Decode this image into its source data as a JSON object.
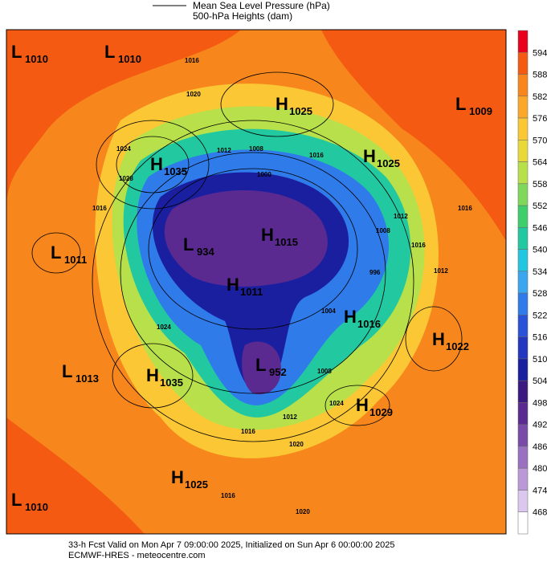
{
  "legend": {
    "line_label": "Mean Sea Level Pressure (hPa)",
    "fill_label": "500-hPa Heights (dam)"
  },
  "colorbar": {
    "levels": [
      594,
      588,
      582,
      576,
      570,
      564,
      558,
      552,
      546,
      540,
      534,
      528,
      522,
      516,
      510,
      504,
      498,
      492,
      486,
      480,
      474,
      468
    ],
    "colors": [
      "#e8001c",
      "#f55a12",
      "#f8861c",
      "#fba82a",
      "#fcc735",
      "#e8d83a",
      "#b8e04a",
      "#7fd85a",
      "#3fcf6a",
      "#22c9a0",
      "#22c6e0",
      "#3aa6f0",
      "#2f7bea",
      "#2a52d8",
      "#2236c0",
      "#1a1fa0",
      "#3a1a80",
      "#5a2a90",
      "#7a4aa8",
      "#9a70c0",
      "#bb98d8",
      "#dcc8ee",
      "#ffffff"
    ]
  },
  "centers": [
    {
      "symbol": "L",
      "value": 1010
    },
    {
      "symbol": "L",
      "value": 1010
    },
    {
      "symbol": "H",
      "value": 1025
    },
    {
      "symbol": "L",
      "value": 1009
    },
    {
      "symbol": "H",
      "value": 1035
    },
    {
      "symbol": "H",
      "value": 1025
    },
    {
      "symbol": "L",
      "value": 1011
    },
    {
      "symbol": "L",
      "value": 934
    },
    {
      "symbol": "H",
      "value": 1015
    },
    {
      "symbol": "H",
      "value": 1011
    },
    {
      "symbol": "H",
      "value": 1016
    },
    {
      "symbol": "H",
      "value": 1022
    },
    {
      "symbol": "L",
      "value": 1013
    },
    {
      "symbol": "H",
      "value": 1035
    },
    {
      "symbol": "L",
      "value": 952
    },
    {
      "symbol": "H",
      "value": 1029
    },
    {
      "symbol": "H",
      "value": 1025
    },
    {
      "symbol": "L",
      "value": 1010
    }
  ],
  "contour_labels": [
    1016,
    1020,
    1024,
    1028,
    1016,
    1012,
    1008,
    1016,
    1012,
    1008,
    1016,
    1000,
    996,
    1004,
    1008,
    1012,
    1016,
    1020,
    1024,
    1016,
    1012,
    1016,
    1024,
    1020
  ],
  "footer": [
    "33-h Fcst Valid on Mon Apr  7 09:00:00 2025, Initialized on Sun Apr  6 00:00:00 2025",
    "ECMWF-HRES  - meteocentre.com"
  ]
}
